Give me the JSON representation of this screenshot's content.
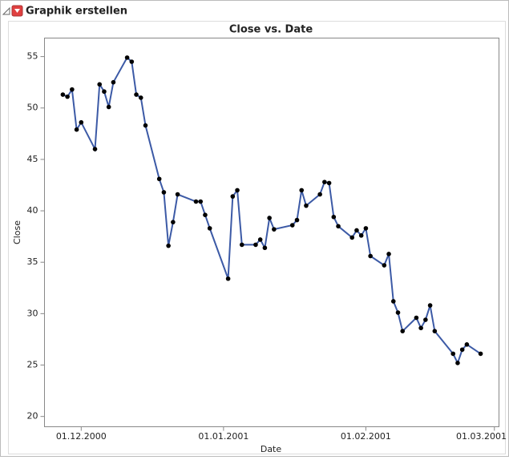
{
  "header": {
    "title": "Graphik erstellen"
  },
  "chart_data": {
    "type": "line",
    "title": "Close vs. Date",
    "xlabel": "Date",
    "ylabel": "Close",
    "x": [
      "27.11.2000",
      "28.11.2000",
      "29.11.2000",
      "30.11.2000",
      "01.12.2000",
      "04.12.2000",
      "05.12.2000",
      "06.12.2000",
      "07.12.2000",
      "08.12.2000",
      "11.12.2000",
      "12.12.2000",
      "13.12.2000",
      "14.12.2000",
      "15.12.2000",
      "18.12.2000",
      "19.12.2000",
      "20.12.2000",
      "21.12.2000",
      "22.12.2000",
      "26.12.2000",
      "27.12.2000",
      "28.12.2000",
      "29.12.2000",
      "02.01.2001",
      "03.01.2001",
      "04.01.2001",
      "05.01.2001",
      "08.01.2001",
      "09.01.2001",
      "10.01.2001",
      "11.01.2001",
      "12.01.2001",
      "16.01.2001",
      "17.01.2001",
      "18.01.2001",
      "19.01.2001",
      "22.01.2001",
      "23.01.2001",
      "24.01.2001",
      "25.01.2001",
      "26.01.2001",
      "29.01.2001",
      "30.01.2001",
      "31.01.2001",
      "01.02.2001",
      "02.02.2001",
      "05.02.2001",
      "06.02.2001",
      "07.02.2001",
      "08.02.2001",
      "09.02.2001",
      "12.02.2001",
      "13.02.2001",
      "14.02.2001",
      "15.02.2001",
      "16.02.2001",
      "20.02.2001",
      "21.02.2001",
      "22.02.2001",
      "23.02.2001",
      "26.02.2001"
    ],
    "values": [
      51.3,
      51.1,
      51.8,
      47.9,
      48.6,
      46.0,
      52.3,
      51.6,
      50.1,
      52.5,
      54.9,
      54.5,
      51.3,
      51.0,
      48.3,
      43.1,
      41.8,
      36.6,
      38.9,
      41.6,
      40.9,
      40.9,
      39.6,
      38.3,
      33.4,
      41.4,
      42.0,
      36.7,
      36.7,
      37.2,
      36.4,
      39.3,
      38.2,
      38.6,
      39.1,
      42.0,
      40.5,
      41.6,
      42.8,
      42.7,
      39.4,
      38.5,
      37.4,
      38.1,
      37.6,
      38.3,
      35.6,
      34.7,
      35.8,
      31.2,
      30.1,
      28.3,
      29.6,
      28.6,
      29.4,
      30.8,
      28.3,
      26.1,
      25.2,
      26.5,
      27.0,
      26.1
    ],
    "color": "#3c5aa6",
    "marker_color": "#000000",
    "xlim": [
      "23.11.2000",
      "02.03.2001"
    ],
    "xticks": [
      "01.12.2000",
      "01.01.2001",
      "01.02.2001",
      "01.03.2001"
    ],
    "ylim": [
      19,
      56.8
    ],
    "yticks": [
      20,
      25,
      30,
      35,
      40,
      45,
      50,
      55
    ],
    "grid": false
  }
}
